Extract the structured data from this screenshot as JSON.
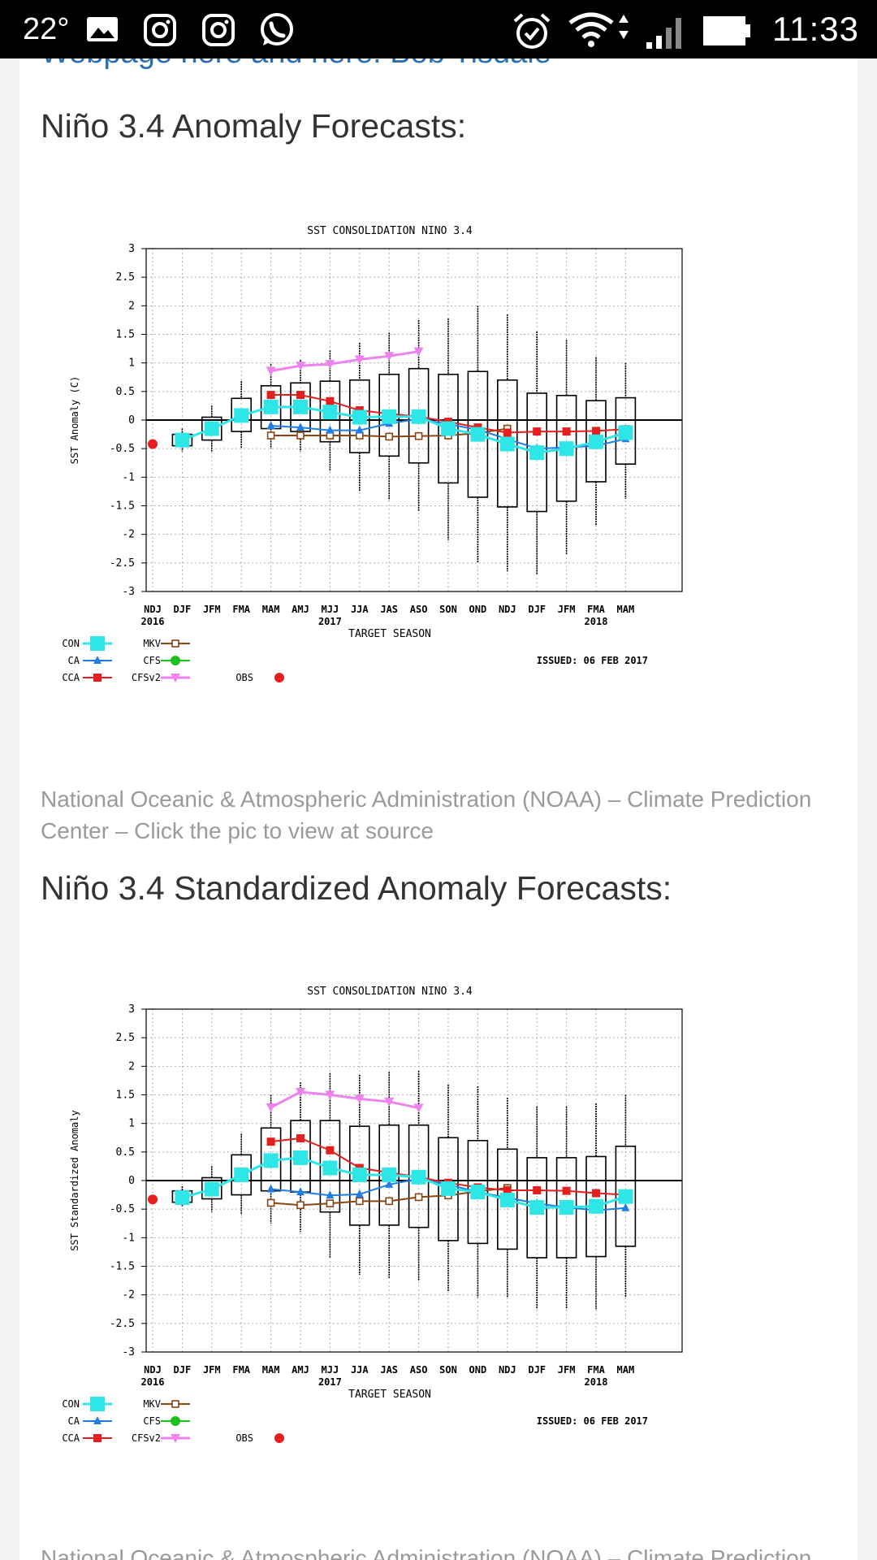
{
  "status_bar": {
    "temperature": "22°",
    "time": "11:33",
    "icons": [
      "gallery-icon",
      "instagram-icon",
      "instagram-icon",
      "whatsapp-icon",
      "alarm-icon",
      "wifi-icon",
      "signal-icon",
      "battery-icon"
    ]
  },
  "article": {
    "cut_link_text": "Webpage here and here. Bob Tisdale",
    "sections": [
      {
        "heading": "Niño 3.4 Anomaly Forecasts:",
        "caption": "National Oceanic & Atmospheric Administration (NOAA) – Climate Prediction Center – Click the pic to view at source"
      },
      {
        "heading": "Niño 3.4 Standardized Anomaly Forecasts:",
        "caption": "National Oceanic & Atmospheric Administration (NOAA) – Climate Prediction Center – Click the pic to view at source"
      }
    ]
  },
  "colors": {
    "CON": "#2ee6e6",
    "CA": "#1e7ee6",
    "CCA": "#e61e1e",
    "MKV": "#8b4513",
    "CFS": "#1ebe1e",
    "CFSv2": "#ee82ee",
    "OBS": "#e61e1e"
  },
  "chart_data": [
    {
      "type": "box+line",
      "title": "SST CONSOLIDATION NINO 3.4",
      "xlabel": "TARGET SEASON",
      "ylabel": "SST Anomaly (C)",
      "issued": "ISSUED: 06 FEB 2017",
      "categories": [
        "NDJ",
        "DJF",
        "JFM",
        "FMA",
        "MAM",
        "AMJ",
        "MJJ",
        "JJA",
        "JAS",
        "ASO",
        "SON",
        "OND",
        "NDJ",
        "DJF",
        "JFM",
        "FMA",
        "MAM"
      ],
      "year_labels": {
        "0": "2016",
        "6": "2017",
        "15": "2018"
      },
      "ylim": [
        -3,
        3
      ],
      "yticks": [
        "3",
        "2.5",
        "2",
        "1.5",
        "1",
        "0.5",
        "0",
        "-0.5",
        "-1",
        "-1.5",
        "-2",
        "-2.5",
        "-3"
      ],
      "grid": true,
      "boxes": [
        null,
        {
          "min": -0.55,
          "q1": -0.45,
          "q3": -0.25,
          "max": -0.15
        },
        {
          "min": -0.55,
          "q1": -0.35,
          "q3": 0.05,
          "max": 0.25
        },
        {
          "min": -0.5,
          "q1": -0.2,
          "q3": 0.38,
          "max": 0.68
        },
        {
          "min": -0.5,
          "q1": -0.15,
          "q3": 0.6,
          "max": 0.98
        },
        {
          "min": -0.55,
          "q1": -0.2,
          "q3": 0.65,
          "max": 1.05
        },
        {
          "min": -0.9,
          "q1": -0.38,
          "q3": 0.68,
          "max": 1.22
        },
        {
          "min": -1.25,
          "q1": -0.57,
          "q3": 0.7,
          "max": 1.35
        },
        {
          "min": -1.4,
          "q1": -0.63,
          "q3": 0.8,
          "max": 1.53
        },
        {
          "min": -1.6,
          "q1": -0.75,
          "q3": 0.9,
          "max": 1.75
        },
        {
          "min": -2.1,
          "q1": -1.1,
          "q3": 0.8,
          "max": 1.78
        },
        {
          "min": -2.5,
          "q1": -1.35,
          "q3": 0.85,
          "max": 2.0
        },
        {
          "min": -2.65,
          "q1": -1.52,
          "q3": 0.7,
          "max": 1.85
        },
        {
          "min": -2.7,
          "q1": -1.6,
          "q3": 0.47,
          "max": 1.55
        },
        {
          "min": -2.35,
          "q1": -1.42,
          "q3": 0.43,
          "max": 1.4
        },
        {
          "min": -1.85,
          "q1": -1.08,
          "q3": 0.34,
          "max": 1.1
        },
        {
          "min": -1.38,
          "q1": -0.77,
          "q3": 0.39,
          "max": 1.0
        }
      ],
      "series": [
        {
          "name": "CON",
          "marker": "square",
          "values": [
            null,
            -0.35,
            -0.15,
            0.08,
            0.23,
            0.23,
            0.14,
            0.05,
            0.06,
            0.06,
            -0.15,
            -0.25,
            -0.42,
            -0.57,
            -0.5,
            -0.38,
            -0.22
          ]
        },
        {
          "name": "CA",
          "marker": "triangle",
          "values": [
            null,
            null,
            null,
            null,
            -0.1,
            -0.13,
            -0.18,
            -0.18,
            -0.06,
            0.02,
            -0.07,
            -0.17,
            -0.33,
            -0.5,
            -0.48,
            -0.45,
            -0.33
          ]
        },
        {
          "name": "CCA",
          "marker": "square-filled",
          "values": [
            null,
            null,
            null,
            null,
            0.44,
            0.44,
            0.33,
            0.17,
            0.11,
            0.06,
            -0.03,
            -0.13,
            -0.22,
            -0.2,
            -0.2,
            -0.19,
            -0.16
          ]
        },
        {
          "name": "MKV",
          "marker": "square-open",
          "values": [
            null,
            null,
            null,
            null,
            -0.27,
            -0.27,
            -0.27,
            -0.27,
            -0.29,
            -0.28,
            -0.27,
            -0.23,
            -0.15,
            null,
            null,
            null,
            null
          ]
        },
        {
          "name": "CFS",
          "marker": "circle",
          "values": [
            null,
            null,
            null,
            null,
            null,
            null,
            null,
            null,
            null,
            null,
            null,
            null,
            null,
            null,
            null,
            null,
            null
          ]
        },
        {
          "name": "CFSv2",
          "marker": "triangle-down",
          "values": [
            null,
            null,
            null,
            null,
            0.86,
            0.95,
            0.98,
            1.06,
            1.12,
            1.2,
            null,
            null,
            null,
            null,
            null,
            null,
            null
          ]
        },
        {
          "name": "OBS",
          "marker": "circle",
          "values": [
            -0.42,
            null,
            null,
            null,
            null,
            null,
            null,
            null,
            null,
            null,
            null,
            null,
            null,
            null,
            null,
            null,
            null
          ]
        }
      ],
      "legend": [
        "CON",
        "CA",
        "CCA",
        "MKV",
        "CFS",
        "CFSv2",
        "OBS"
      ],
      "legend_placement": "bottom-left"
    },
    {
      "type": "box+line",
      "title": "SST CONSOLIDATION NINO 3.4",
      "xlabel": "TARGET SEASON",
      "ylabel": "SST Standardized Anomaly",
      "issued": "ISSUED: 06 FEB 2017",
      "categories": [
        "NDJ",
        "DJF",
        "JFM",
        "FMA",
        "MAM",
        "AMJ",
        "MJJ",
        "JJA",
        "JAS",
        "ASO",
        "SON",
        "OND",
        "NDJ",
        "DJF",
        "JFM",
        "FMA",
        "MAM"
      ],
      "year_labels": {
        "0": "2016",
        "6": "2017",
        "15": "2018"
      },
      "ylim": [
        -3,
        3
      ],
      "yticks": [
        "3",
        "2.5",
        "2",
        "1.5",
        "1",
        "0.5",
        "0",
        "-0.5",
        "-1",
        "-1.5",
        "-2",
        "-2.5",
        "-3"
      ],
      "grid": true,
      "boxes": [
        null,
        {
          "min": -0.45,
          "q1": -0.38,
          "q3": -0.18,
          "max": -0.1
        },
        {
          "min": -0.55,
          "q1": -0.32,
          "q3": 0.05,
          "max": 0.25
        },
        {
          "min": -0.6,
          "q1": -0.25,
          "q3": 0.45,
          "max": 0.82
        },
        {
          "min": -0.75,
          "q1": -0.18,
          "q3": 0.92,
          "max": 1.5
        },
        {
          "min": -0.9,
          "q1": -0.2,
          "q3": 1.05,
          "max": 1.72
        },
        {
          "min": -1.35,
          "q1": -0.55,
          "q3": 1.05,
          "max": 1.88
        },
        {
          "min": -1.65,
          "q1": -0.78,
          "q3": 0.95,
          "max": 1.85
        },
        {
          "min": -1.7,
          "q1": -0.78,
          "q3": 0.97,
          "max": 1.9
        },
        {
          "min": -1.75,
          "q1": -0.82,
          "q3": 0.97,
          "max": 1.92
        },
        {
          "min": -1.95,
          "q1": -1.05,
          "q3": 0.75,
          "max": 1.68
        },
        {
          "min": -2.05,
          "q1": -1.1,
          "q3": 0.7,
          "max": 1.65
        },
        {
          "min": -2.05,
          "q1": -1.2,
          "q3": 0.55,
          "max": 1.45
        },
        {
          "min": -2.25,
          "q1": -1.35,
          "q3": 0.4,
          "max": 1.3
        },
        {
          "min": -2.25,
          "q1": -1.35,
          "q3": 0.4,
          "max": 1.3
        },
        {
          "min": -2.25,
          "q1": -1.33,
          "q3": 0.42,
          "max": 1.35
        },
        {
          "min": -2.05,
          "q1": -1.15,
          "q3": 0.6,
          "max": 1.5
        }
      ],
      "series": [
        {
          "name": "CON",
          "marker": "square",
          "values": [
            null,
            -0.3,
            -0.15,
            0.1,
            0.35,
            0.4,
            0.22,
            0.1,
            0.1,
            0.06,
            -0.14,
            -0.2,
            -0.34,
            -0.47,
            -0.47,
            -0.45,
            -0.28
          ]
        },
        {
          "name": "CA",
          "marker": "triangle",
          "values": [
            null,
            null,
            null,
            null,
            -0.15,
            -0.2,
            -0.26,
            -0.24,
            -0.07,
            0.03,
            -0.07,
            -0.2,
            -0.3,
            -0.4,
            -0.47,
            -0.52,
            -0.48
          ]
        },
        {
          "name": "CCA",
          "marker": "square-filled",
          "values": [
            null,
            null,
            null,
            null,
            0.68,
            0.74,
            0.53,
            0.22,
            0.14,
            0.06,
            -0.04,
            -0.12,
            -0.17,
            -0.17,
            -0.18,
            -0.22,
            -0.25
          ]
        },
        {
          "name": "MKV",
          "marker": "square-open",
          "values": [
            null,
            null,
            null,
            null,
            -0.39,
            -0.43,
            -0.4,
            -0.36,
            -0.36,
            -0.29,
            -0.26,
            -0.19,
            -0.13,
            null,
            null,
            null,
            null
          ]
        },
        {
          "name": "CFS",
          "marker": "circle",
          "values": [
            null,
            null,
            null,
            null,
            null,
            null,
            null,
            null,
            null,
            null,
            null,
            null,
            null,
            null,
            null,
            null,
            null
          ]
        },
        {
          "name": "CFSv2",
          "marker": "triangle-down",
          "values": [
            null,
            null,
            null,
            null,
            1.28,
            1.55,
            1.5,
            1.43,
            1.38,
            1.27,
            null,
            null,
            null,
            null,
            null,
            null,
            null
          ]
        },
        {
          "name": "OBS",
          "marker": "circle",
          "values": [
            -0.33,
            null,
            null,
            null,
            null,
            null,
            null,
            null,
            null,
            null,
            null,
            null,
            null,
            null,
            null,
            null,
            null
          ]
        }
      ],
      "legend": [
        "CON",
        "CA",
        "CCA",
        "MKV",
        "CFS",
        "CFSv2",
        "OBS"
      ],
      "legend_placement": "bottom-left"
    }
  ]
}
